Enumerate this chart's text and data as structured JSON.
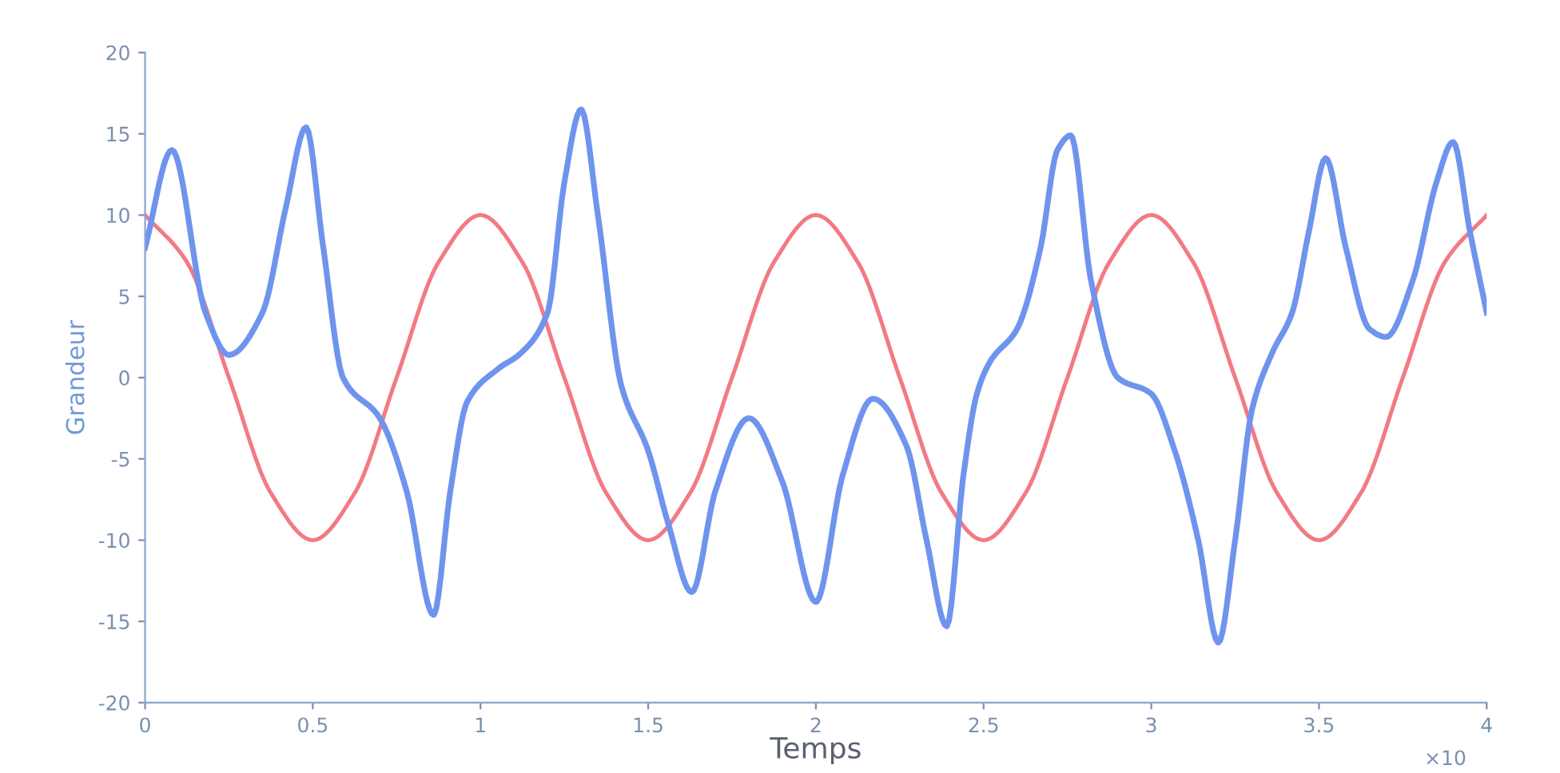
{
  "chart_data": {
    "type": "line",
    "xlabel": "Temps",
    "ylabel": "Grandeur",
    "xlim": [
      0,
      4
    ],
    "ylim": [
      -20,
      20
    ],
    "xticks": [
      0,
      0.5,
      1,
      1.5,
      2,
      2.5,
      3,
      3.5,
      4
    ],
    "yticks": [
      -20,
      -15,
      -10,
      -5,
      0,
      5,
      10,
      15,
      20
    ],
    "grid": false,
    "legend": false,
    "annotations": [
      "×10"
    ],
    "series": [
      {
        "color": "#f27a84",
        "x": [
          0,
          0.125,
          0.25,
          0.375,
          0.5,
          0.625,
          0.75,
          0.875,
          1,
          1.125,
          1.25,
          1.375,
          1.5,
          1.625,
          1.75,
          1.875,
          2,
          2.125,
          2.25,
          2.375,
          2.5,
          2.625,
          2.75,
          2.875,
          3,
          3.125,
          3.25,
          3.375,
          3.5,
          3.625,
          3.75,
          3.875,
          4
        ],
        "values": [
          10,
          7.1,
          0,
          -7.1,
          -10,
          -7.1,
          0,
          7.1,
          10,
          7.1,
          0,
          -7.1,
          -10,
          -7.1,
          0,
          7.1,
          10,
          7.1,
          0,
          -7.1,
          -10,
          -7.1,
          0,
          7.1,
          10,
          7.1,
          0,
          -7.1,
          -10,
          -7.1,
          0,
          7.1,
          10
        ]
      },
      {
        "color": "#6e94ee",
        "x": [
          0,
          0.08,
          0.18,
          0.25,
          0.35,
          0.42,
          0.48,
          0.53,
          0.59,
          0.7,
          0.78,
          0.86,
          0.91,
          0.96,
          1.05,
          1.12,
          1.2,
          1.25,
          1.3,
          1.35,
          1.42,
          1.5,
          1.56,
          1.63,
          1.7,
          1.8,
          1.9,
          2.0,
          2.08,
          2.17,
          2.27,
          2.33,
          2.39,
          2.44,
          2.48,
          2.52,
          2.6,
          2.67,
          2.72,
          2.76,
          2.82,
          2.9,
          3.0,
          3.07,
          3.14,
          3.2,
          3.25,
          3.3,
          3.36,
          3.42,
          3.47,
          3.52,
          3.58,
          3.65,
          3.7,
          3.78,
          3.85,
          3.9,
          3.95,
          4.0
        ],
        "values": [
          8,
          14,
          4,
          1.4,
          4,
          10.5,
          15.4,
          8.2,
          0,
          -2.5,
          -7,
          -14.6,
          -7,
          -1.5,
          0.5,
          1.5,
          4,
          12,
          16.5,
          10,
          -0.5,
          -4.5,
          -9,
          -13.2,
          -7,
          -2.5,
          -6.4,
          -13.8,
          -6,
          -1.3,
          -4.2,
          -10,
          -15.3,
          -6,
          -1,
          1,
          3,
          8,
          14,
          14.9,
          6,
          0,
          -1,
          -4.5,
          -10,
          -16.3,
          -10,
          -2,
          1.5,
          4,
          9,
          13.5,
          8,
          3,
          2.5,
          6,
          12,
          14.5,
          9,
          4
        ]
      }
    ]
  }
}
